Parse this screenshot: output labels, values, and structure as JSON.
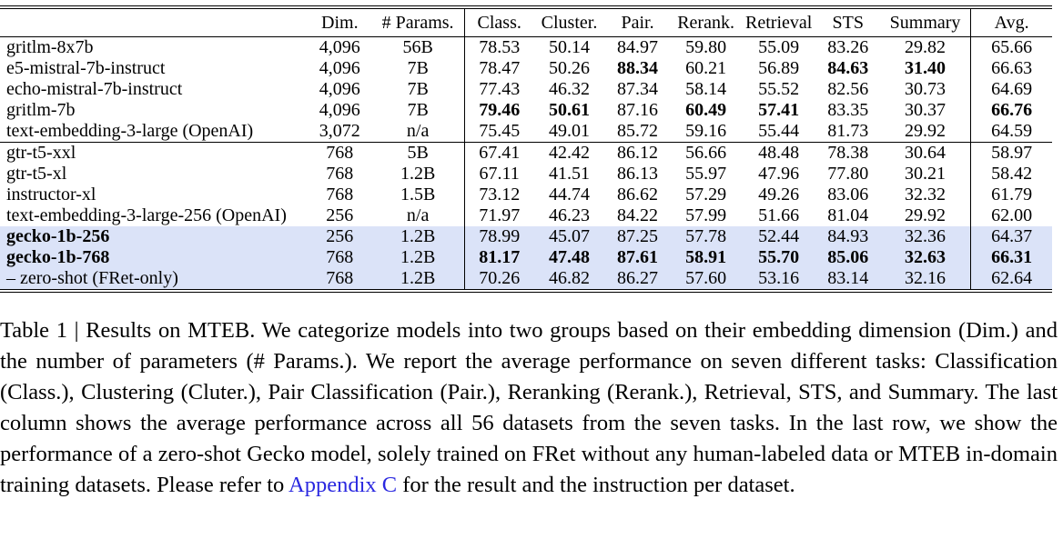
{
  "table": {
    "headers": [
      "",
      "Dim.",
      "# Params.",
      "Class.",
      "Cluster.",
      "Pair.",
      "Rerank.",
      "Retrieval",
      "STS",
      "Summary",
      "Avg."
    ],
    "column_keys": [
      "dim",
      "params",
      "class",
      "cluster",
      "pair",
      "rerank",
      "retrieval",
      "sts",
      "summary",
      "avg"
    ],
    "groups": [
      {
        "rows": [
          {
            "model": "gritlm-8x7b",
            "model_bold": false,
            "highlight": false,
            "values": [
              "4,096",
              "56B",
              "78.53",
              "50.14",
              "84.97",
              "59.80",
              "55.09",
              "83.26",
              "29.82",
              "65.66"
            ],
            "bold_cols": []
          },
          {
            "model": "e5-mistral-7b-instruct",
            "model_bold": false,
            "highlight": false,
            "values": [
              "4,096",
              "7B",
              "78.47",
              "50.26",
              "88.34",
              "60.21",
              "56.89",
              "84.63",
              "31.40",
              "66.63"
            ],
            "bold_cols": [
              4,
              7,
              8
            ]
          },
          {
            "model": "echo-mistral-7b-instruct",
            "model_bold": false,
            "highlight": false,
            "values": [
              "4,096",
              "7B",
              "77.43",
              "46.32",
              "87.34",
              "58.14",
              "55.52",
              "82.56",
              "30.73",
              "64.69"
            ],
            "bold_cols": []
          },
          {
            "model": "gritlm-7b",
            "model_bold": false,
            "highlight": false,
            "values": [
              "4,096",
              "7B",
              "79.46",
              "50.61",
              "87.16",
              "60.49",
              "57.41",
              "83.35",
              "30.37",
              "66.76"
            ],
            "bold_cols": [
              2,
              3,
              5,
              6,
              9
            ]
          },
          {
            "model": "text-embedding-3-large (OpenAI)",
            "model_bold": false,
            "highlight": false,
            "values": [
              "3,072",
              "n/a",
              "75.45",
              "49.01",
              "85.72",
              "59.16",
              "55.44",
              "81.73",
              "29.92",
              "64.59"
            ],
            "bold_cols": []
          }
        ]
      },
      {
        "rows": [
          {
            "model": "gtr-t5-xxl",
            "model_bold": false,
            "highlight": false,
            "values": [
              "768",
              "5B",
              "67.41",
              "42.42",
              "86.12",
              "56.66",
              "48.48",
              "78.38",
              "30.64",
              "58.97"
            ],
            "bold_cols": []
          },
          {
            "model": "gtr-t5-xl",
            "model_bold": false,
            "highlight": false,
            "values": [
              "768",
              "1.2B",
              "67.11",
              "41.51",
              "86.13",
              "55.97",
              "47.96",
              "77.80",
              "30.21",
              "58.42"
            ],
            "bold_cols": []
          },
          {
            "model": "instructor-xl",
            "model_bold": false,
            "highlight": false,
            "values": [
              "768",
              "1.5B",
              "73.12",
              "44.74",
              "86.62",
              "57.29",
              "49.26",
              "83.06",
              "32.32",
              "61.79"
            ],
            "bold_cols": []
          },
          {
            "model": "text-embedding-3-large-256 (OpenAI)",
            "model_bold": false,
            "highlight": false,
            "values": [
              "256",
              "n/a",
              "71.97",
              "46.23",
              "84.22",
              "57.99",
              "51.66",
              "81.04",
              "29.92",
              "62.00"
            ],
            "bold_cols": []
          },
          {
            "model": "gecko-1b-256",
            "model_bold": true,
            "highlight": true,
            "values": [
              "256",
              "1.2B",
              "78.99",
              "45.07",
              "87.25",
              "57.78",
              "52.44",
              "84.93",
              "32.36",
              "64.37"
            ],
            "bold_cols": []
          },
          {
            "model": "gecko-1b-768",
            "model_bold": true,
            "highlight": true,
            "values": [
              "768",
              "1.2B",
              "81.17",
              "47.48",
              "87.61",
              "58.91",
              "55.70",
              "85.06",
              "32.63",
              "66.31"
            ],
            "bold_cols": [
              2,
              3,
              4,
              5,
              6,
              7,
              8,
              9
            ]
          },
          {
            "model": "– zero-shot (FRet-only)",
            "model_bold": false,
            "highlight": true,
            "values": [
              "768",
              "1.2B",
              "70.26",
              "46.82",
              "86.27",
              "57.60",
              "53.16",
              "83.14",
              "32.16",
              "62.64"
            ],
            "bold_cols": []
          }
        ]
      }
    ]
  },
  "caption": {
    "text_before_link": "Table 1 | Results on MTEB. We categorize models into two groups based on their embedding dimension (Dim.) and the number of parameters (# Params.). We report the average performance on seven different tasks: Classification (Class.), Clustering (Cluter.), Pair Classification (Pair.), Reranking (Rerank.), Retrieval, STS, and Summary. The last column shows the average performance across all 56 datasets from the seven tasks. In the last row, we show the performance of a zero-shot Gecko model, solely trained on FRet without any human-labeled data or MTEB in-domain training datasets. Please refer to ",
    "link_text": "Appendix C",
    "text_after_link": " for the result and the instruction per dataset."
  },
  "colors": {
    "row_highlight": "#dbe3f8",
    "link": "#2a28e0",
    "rule": "#000000"
  }
}
